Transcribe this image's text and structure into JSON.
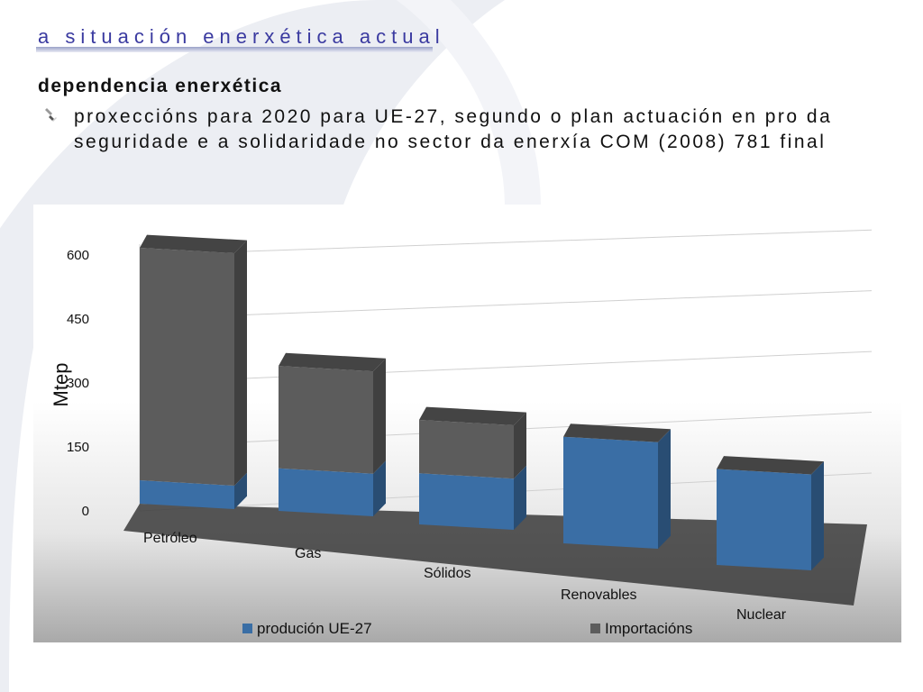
{
  "slide": {
    "title": "a situación enerxética actual",
    "subtitle": "dependencia enerxética",
    "bullet_text": "proxeccións para 2020 para UE-27, segundo o plan actuación en pro da seguridade e a solidaridade no sector da enerxía COM (2008) 781 final"
  },
  "colors": {
    "title": "#3a3aa0",
    "production": "#3a6ea5",
    "imports": "#5c5c5c"
  },
  "chart_data": {
    "type": "bar",
    "stacked": true,
    "style": "3d",
    "categories": [
      "Petróleo",
      "Gas",
      "Sólidos",
      "Renovables",
      "Nuclear"
    ],
    "series": [
      {
        "name": "produción UE-27",
        "values": [
          55,
          100,
          120,
          250,
          225
        ],
        "color": "#3a6ea5"
      },
      {
        "name": "Importacións",
        "values": [
          545,
          240,
          125,
          0,
          0
        ],
        "color": "#5c5c5c"
      }
    ],
    "ylabel": "Mtep",
    "yticks": [
      0,
      150,
      300,
      450,
      600
    ],
    "ytick_labels": [
      "0",
      "150",
      "300",
      "450",
      "600"
    ],
    "ylim": [
      0,
      600
    ],
    "legend": "bottom",
    "grid": true
  }
}
